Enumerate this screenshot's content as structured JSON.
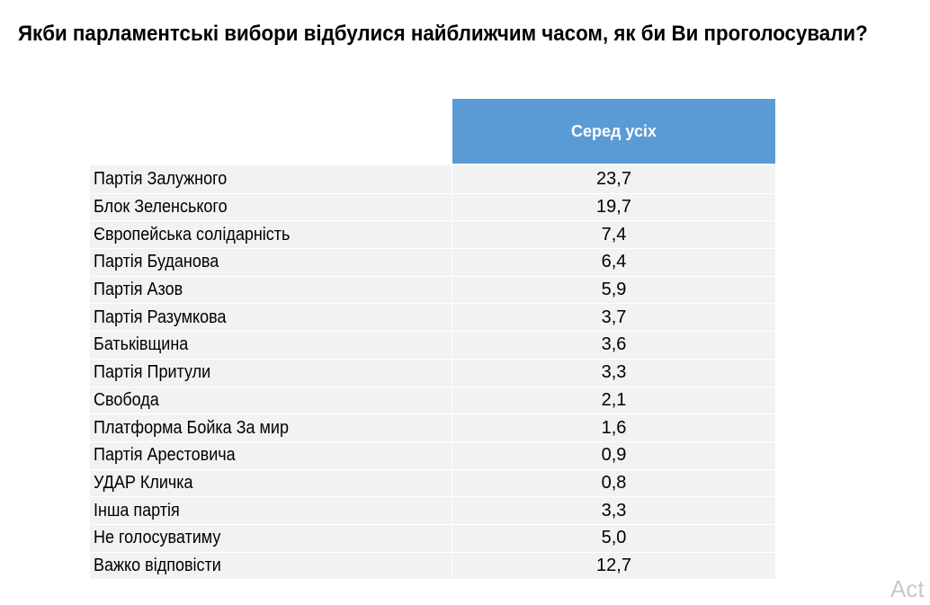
{
  "title": "Якби парламентські вибори відбулися найближчим часом, як би Ви проголосували?",
  "watermark": "Act",
  "chart_data": {
    "type": "table",
    "title": "Якби парламентські вибори відбулися найближчим часом, як би Ви проголосували?",
    "columns": [
      "Серед усіх"
    ],
    "categories": [
      "Партія Залужного",
      "Блок Зеленського",
      "Європейська солідарність",
      "Партія Буданова",
      "Партія Азов",
      "Партія Разумкова",
      "Батьківщина",
      "Партія Притули",
      "Свобода",
      "Платформа Бойка За мир",
      "Партія Арестовича",
      "УДАР Кличка",
      "Інша партія",
      "Не голосуватиму",
      "Важко відповісти"
    ],
    "values": [
      "23,7",
      "19,7",
      "7,4",
      "6,4",
      "5,9",
      "3,7",
      "3,6",
      "3,3",
      "2,1",
      "1,6",
      "0,9",
      "0,8",
      "3,3",
      "5,0",
      "12,7"
    ],
    "colors": {
      "header_bg": "#5b9bd5",
      "row_bg": "#f2f2f2"
    }
  }
}
